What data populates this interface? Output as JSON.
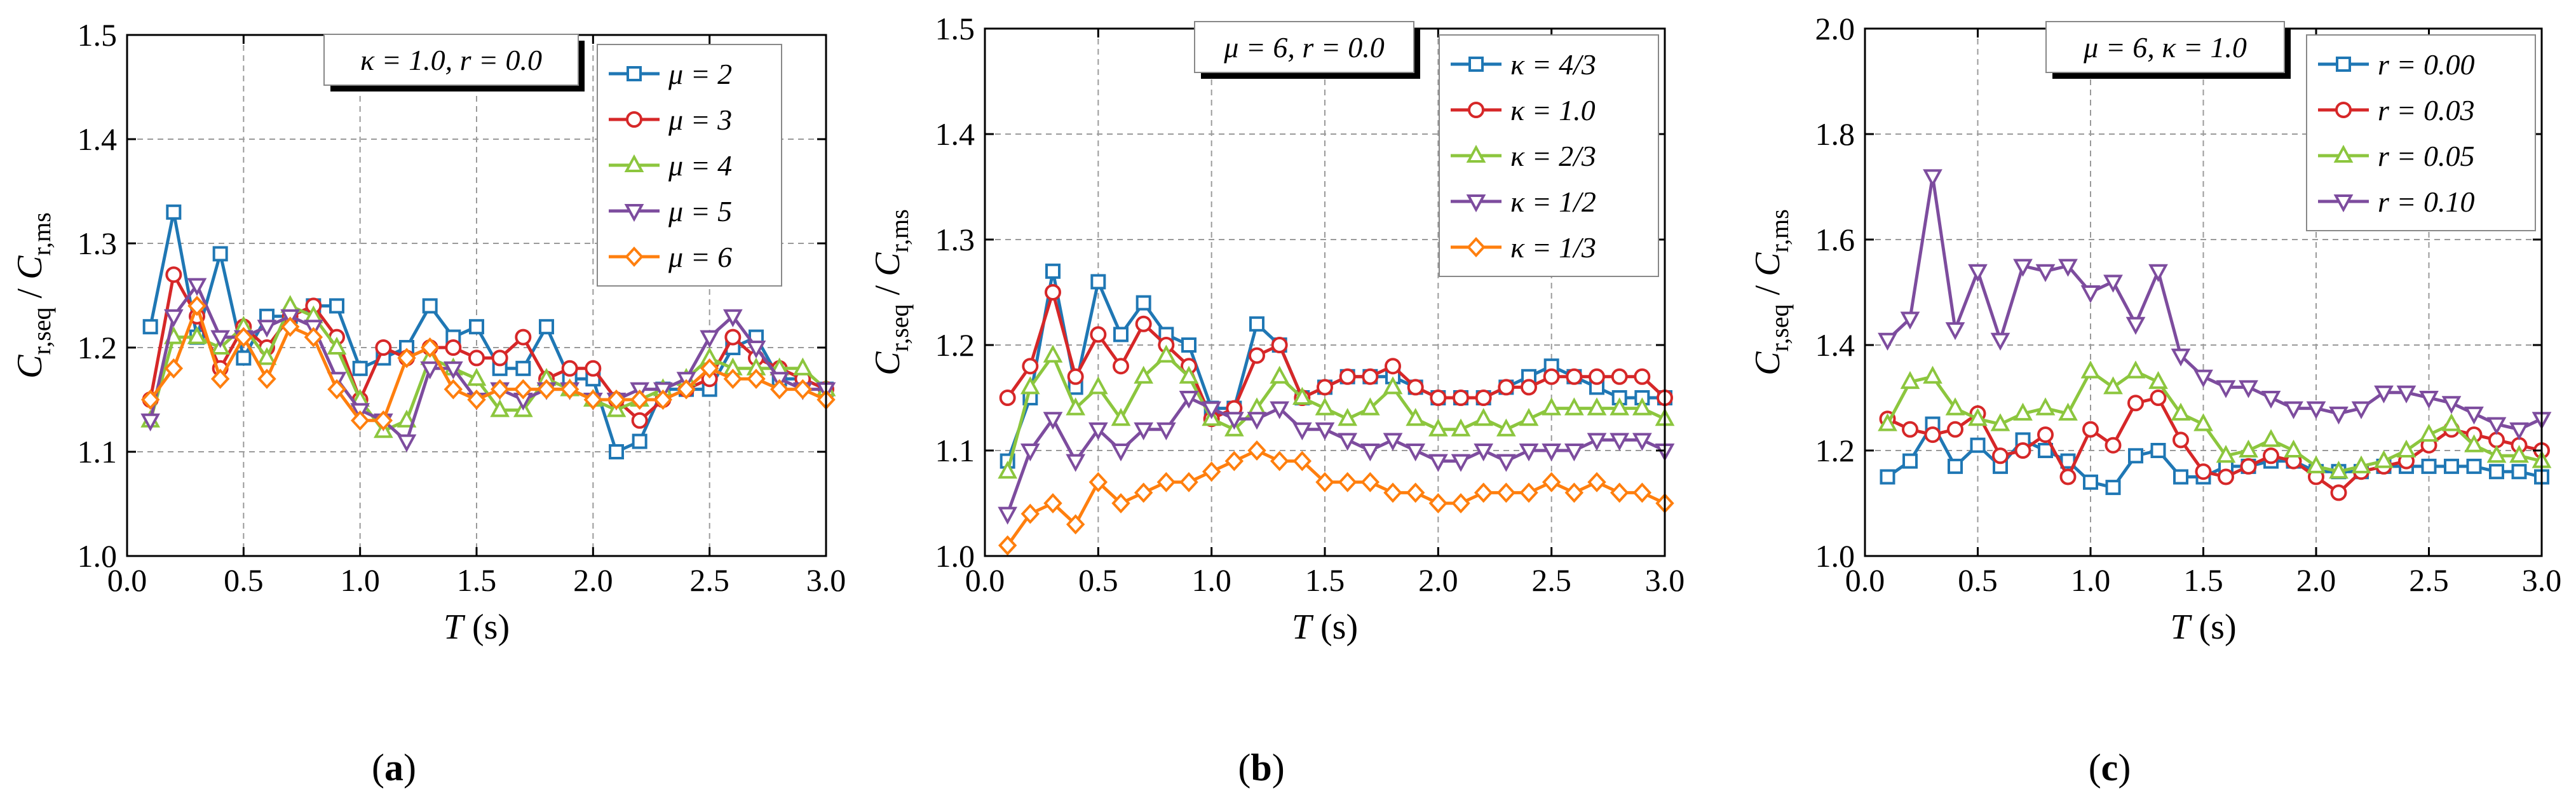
{
  "colors": {
    "blue": "#1f77b4",
    "red": "#d62728",
    "green": "#8cc63e",
    "purple": "#7d4c9e",
    "orange": "#ff7f0e"
  },
  "chart_data": [
    {
      "type": "line",
      "panel_label": "(a)",
      "xlabel": "T (s)",
      "ylabel": "C_r,seq / C_r,ms",
      "xlim": [
        0.0,
        3.0
      ],
      "ylim": [
        1.0,
        1.5
      ],
      "xticks": [
        "0.0",
        "0.5",
        "1.0",
        "1.5",
        "2.0",
        "2.5",
        "3.0"
      ],
      "yticks": [
        "1.0",
        "1.1",
        "1.2",
        "1.3",
        "1.4",
        "1.5"
      ],
      "annotation": "κ = 1.0, r = 0.0",
      "x": [
        0.1,
        0.2,
        0.3,
        0.4,
        0.5,
        0.6,
        0.7,
        0.8,
        0.9,
        1.0,
        1.1,
        1.2,
        1.3,
        1.4,
        1.5,
        1.6,
        1.7,
        1.8,
        1.9,
        2.0,
        2.1,
        2.2,
        2.3,
        2.4,
        2.5,
        2.6,
        2.7,
        2.8,
        2.9,
        3.0
      ],
      "series": [
        {
          "name": "μ = 2",
          "color": "blue",
          "marker": "square",
          "values": [
            1.22,
            1.33,
            1.21,
            1.29,
            1.19,
            1.23,
            1.23,
            1.24,
            1.24,
            1.18,
            1.19,
            1.2,
            1.24,
            1.21,
            1.22,
            1.18,
            1.18,
            1.22,
            1.17,
            1.17,
            1.1,
            1.11,
            1.16,
            1.16,
            1.16,
            1.2,
            1.21,
            1.17,
            1.17,
            1.16
          ]
        },
        {
          "name": "μ = 3",
          "color": "red",
          "marker": "circle",
          "values": [
            1.15,
            1.27,
            1.23,
            1.18,
            1.22,
            1.2,
            1.23,
            1.24,
            1.21,
            1.15,
            1.2,
            1.19,
            1.2,
            1.2,
            1.19,
            1.19,
            1.21,
            1.17,
            1.18,
            1.18,
            1.15,
            1.13,
            1.15,
            1.16,
            1.17,
            1.21,
            1.19,
            1.18,
            1.17,
            1.16
          ]
        },
        {
          "name": "μ = 4",
          "color": "green",
          "marker": "triangle-up",
          "values": [
            1.13,
            1.21,
            1.21,
            1.2,
            1.22,
            1.19,
            1.24,
            1.23,
            1.2,
            1.15,
            1.12,
            1.13,
            1.19,
            1.18,
            1.17,
            1.14,
            1.14,
            1.17,
            1.16,
            1.15,
            1.14,
            1.15,
            1.16,
            1.17,
            1.19,
            1.18,
            1.18,
            1.18,
            1.18,
            1.16
          ]
        },
        {
          "name": "μ = 5",
          "color": "purple",
          "marker": "triangle-down",
          "values": [
            1.13,
            1.23,
            1.26,
            1.21,
            1.21,
            1.22,
            1.23,
            1.22,
            1.17,
            1.14,
            1.13,
            1.11,
            1.18,
            1.18,
            1.15,
            1.16,
            1.15,
            1.16,
            1.16,
            1.15,
            1.15,
            1.16,
            1.16,
            1.17,
            1.21,
            1.23,
            1.2,
            1.17,
            1.16,
            1.16
          ]
        },
        {
          "name": "μ = 6",
          "color": "orange",
          "marker": "diamond",
          "values": [
            1.15,
            1.18,
            1.24,
            1.17,
            1.21,
            1.17,
            1.22,
            1.21,
            1.16,
            1.13,
            1.13,
            1.19,
            1.2,
            1.16,
            1.15,
            1.16,
            1.16,
            1.16,
            1.16,
            1.15,
            1.15,
            1.15,
            1.15,
            1.16,
            1.18,
            1.17,
            1.17,
            1.16,
            1.16,
            1.15
          ]
        }
      ]
    },
    {
      "type": "line",
      "panel_label": "(b)",
      "xlabel": "T (s)",
      "ylabel": "C_r,seq / C_r,ms",
      "xlim": [
        0.0,
        3.0
      ],
      "ylim": [
        1.0,
        1.5
      ],
      "xticks": [
        "0.0",
        "0.5",
        "1.0",
        "1.5",
        "2.0",
        "2.5",
        "3.0"
      ],
      "yticks": [
        "1.0",
        "1.1",
        "1.2",
        "1.3",
        "1.4",
        "1.5"
      ],
      "annotation": "μ = 6, r = 0.0",
      "x": [
        0.1,
        0.2,
        0.3,
        0.4,
        0.5,
        0.6,
        0.7,
        0.8,
        0.9,
        1.0,
        1.1,
        1.2,
        1.3,
        1.4,
        1.5,
        1.6,
        1.7,
        1.8,
        1.9,
        2.0,
        2.1,
        2.2,
        2.3,
        2.4,
        2.5,
        2.6,
        2.7,
        2.8,
        2.9,
        3.0
      ],
      "series": [
        {
          "name": "κ = 4/3",
          "color": "blue",
          "marker": "square",
          "values": [
            1.09,
            1.15,
            1.27,
            1.16,
            1.26,
            1.21,
            1.24,
            1.21,
            1.2,
            1.14,
            1.14,
            1.22,
            1.2,
            1.15,
            1.16,
            1.17,
            1.17,
            1.17,
            1.16,
            1.15,
            1.15,
            1.15,
            1.16,
            1.17,
            1.18,
            1.17,
            1.16,
            1.15,
            1.15,
            1.15
          ]
        },
        {
          "name": "κ = 1.0",
          "color": "red",
          "marker": "circle",
          "values": [
            1.15,
            1.18,
            1.25,
            1.17,
            1.21,
            1.18,
            1.22,
            1.2,
            1.18,
            1.13,
            1.14,
            1.19,
            1.2,
            1.15,
            1.16,
            1.17,
            1.17,
            1.18,
            1.16,
            1.15,
            1.15,
            1.15,
            1.16,
            1.16,
            1.17,
            1.17,
            1.17,
            1.17,
            1.17,
            1.15
          ]
        },
        {
          "name": "κ = 2/3",
          "color": "green",
          "marker": "triangle-up",
          "values": [
            1.08,
            1.16,
            1.19,
            1.14,
            1.16,
            1.13,
            1.17,
            1.19,
            1.17,
            1.13,
            1.12,
            1.14,
            1.17,
            1.15,
            1.14,
            1.13,
            1.14,
            1.16,
            1.13,
            1.12,
            1.12,
            1.13,
            1.12,
            1.13,
            1.14,
            1.14,
            1.14,
            1.14,
            1.14,
            1.13
          ]
        },
        {
          "name": "κ = 1/2",
          "color": "purple",
          "marker": "triangle-down",
          "values": [
            1.04,
            1.1,
            1.13,
            1.09,
            1.12,
            1.1,
            1.12,
            1.12,
            1.15,
            1.14,
            1.13,
            1.13,
            1.14,
            1.12,
            1.12,
            1.11,
            1.1,
            1.11,
            1.1,
            1.09,
            1.09,
            1.1,
            1.09,
            1.1,
            1.1,
            1.1,
            1.11,
            1.11,
            1.11,
            1.1
          ]
        },
        {
          "name": "κ = 1/3",
          "color": "orange",
          "marker": "diamond",
          "values": [
            1.01,
            1.04,
            1.05,
            1.03,
            1.07,
            1.05,
            1.06,
            1.07,
            1.07,
            1.08,
            1.09,
            1.1,
            1.09,
            1.09,
            1.07,
            1.07,
            1.07,
            1.06,
            1.06,
            1.05,
            1.05,
            1.06,
            1.06,
            1.06,
            1.07,
            1.06,
            1.07,
            1.06,
            1.06,
            1.05
          ]
        }
      ]
    },
    {
      "type": "line",
      "panel_label": "(c)",
      "xlabel": "T (s)",
      "ylabel": "C_r,seq / C_r,ms",
      "xlim": [
        0.0,
        3.0
      ],
      "ylim": [
        1.0,
        2.0
      ],
      "xticks": [
        "0.0",
        "0.5",
        "1.0",
        "1.5",
        "2.0",
        "2.5",
        "3.0"
      ],
      "yticks": [
        "1.0",
        "1.2",
        "1.4",
        "1.6",
        "1.8",
        "2.0"
      ],
      "annotation": "μ = 6, κ = 1.0",
      "x": [
        0.1,
        0.2,
        0.3,
        0.4,
        0.5,
        0.6,
        0.7,
        0.8,
        0.9,
        1.0,
        1.1,
        1.2,
        1.3,
        1.4,
        1.5,
        1.6,
        1.7,
        1.8,
        1.9,
        2.0,
        2.1,
        2.2,
        2.3,
        2.4,
        2.5,
        2.6,
        2.7,
        2.8,
        2.9,
        3.0
      ],
      "series": [
        {
          "name": "r = 0.00",
          "color": "blue",
          "marker": "square",
          "values": [
            1.15,
            1.18,
            1.25,
            1.17,
            1.21,
            1.17,
            1.22,
            1.2,
            1.18,
            1.14,
            1.13,
            1.19,
            1.2,
            1.15,
            1.15,
            1.17,
            1.17,
            1.18,
            1.18,
            1.16,
            1.16,
            1.16,
            1.17,
            1.17,
            1.17,
            1.17,
            1.17,
            1.16,
            1.16,
            1.15
          ]
        },
        {
          "name": "r = 0.03",
          "color": "red",
          "marker": "circle",
          "values": [
            1.26,
            1.24,
            1.23,
            1.24,
            1.27,
            1.19,
            1.2,
            1.23,
            1.15,
            1.24,
            1.21,
            1.29,
            1.3,
            1.22,
            1.16,
            1.15,
            1.17,
            1.19,
            1.18,
            1.15,
            1.12,
            1.16,
            1.17,
            1.18,
            1.21,
            1.24,
            1.23,
            1.22,
            1.21,
            1.2
          ]
        },
        {
          "name": "r = 0.05",
          "color": "green",
          "marker": "triangle-up",
          "values": [
            1.25,
            1.33,
            1.34,
            1.28,
            1.26,
            1.25,
            1.27,
            1.28,
            1.27,
            1.35,
            1.32,
            1.35,
            1.33,
            1.27,
            1.25,
            1.19,
            1.2,
            1.22,
            1.2,
            1.17,
            1.16,
            1.17,
            1.18,
            1.2,
            1.23,
            1.25,
            1.21,
            1.19,
            1.19,
            1.18
          ]
        },
        {
          "name": "r = 0.10",
          "color": "purple",
          "marker": "triangle-down",
          "values": [
            1.41,
            1.45,
            1.72,
            1.43,
            1.54,
            1.41,
            1.55,
            1.54,
            1.55,
            1.5,
            1.52,
            1.44,
            1.54,
            1.38,
            1.34,
            1.32,
            1.32,
            1.3,
            1.28,
            1.28,
            1.27,
            1.28,
            1.31,
            1.31,
            1.3,
            1.29,
            1.27,
            1.25,
            1.24,
            1.26
          ]
        }
      ]
    }
  ]
}
